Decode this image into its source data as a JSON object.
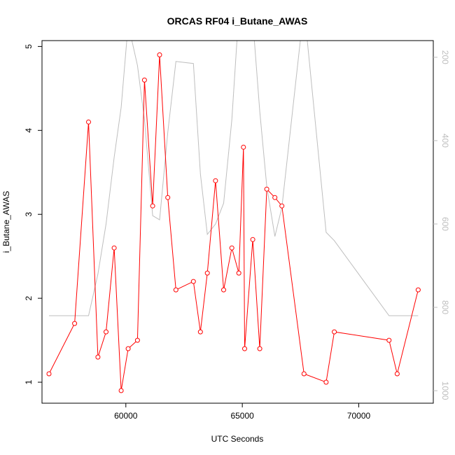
{
  "chart_data": {
    "type": "line",
    "title": "ORCAS RF04 i_Butane_AWAS",
    "xlabel": "UTC Seconds",
    "ylabel": "i_Butane_AWAS",
    "xlim": [
      56400,
      73200
    ],
    "ylim": [
      0.75,
      5.07
    ],
    "xticks": [
      60000,
      65000,
      70000
    ],
    "yticks": [
      1,
      2,
      3,
      4,
      5
    ],
    "colors": {
      "primary": "#ff0000",
      "secondary": "#bebebe",
      "axis": "#000000"
    },
    "series": [
      {
        "axis": "left",
        "color": "#ff0000",
        "marker": "open-circle",
        "x": [
          56700,
          57800,
          58400,
          58800,
          59150,
          59500,
          59800,
          60100,
          60500,
          60800,
          61150,
          61450,
          61800,
          62150,
          62900,
          63200,
          63500,
          63850,
          64200,
          64550,
          64850,
          65050,
          65100,
          65450,
          65750,
          66050,
          66400,
          66700,
          67650,
          68600,
          68950,
          71300,
          71650,
          72550
        ],
        "y": [
          1.1,
          1.7,
          4.1,
          1.3,
          1.6,
          2.6,
          0.9,
          1.4,
          1.5,
          4.6,
          3.1,
          4.9,
          3.2,
          2.1,
          2.2,
          1.6,
          2.3,
          3.4,
          2.1,
          2.6,
          2.3,
          3.8,
          1.4,
          2.7,
          1.4,
          3.3,
          3.2,
          3.1,
          1.1,
          1.0,
          1.6,
          1.5,
          1.1,
          2.1
        ]
      },
      {
        "axis": "right",
        "color": "#bebebe",
        "marker": "none",
        "x": [
          56700,
          57800,
          58400,
          58800,
          59150,
          59500,
          59800,
          60100,
          60500,
          60800,
          61150,
          61450,
          61800,
          62150,
          62900,
          63200,
          63500,
          63850,
          64200,
          64550,
          64850,
          65050,
          65100,
          65450,
          65750,
          66050,
          66400,
          66700,
          67650,
          68600,
          68950,
          71300,
          71650,
          72550
        ],
        "y": [
          820,
          820,
          820,
          720,
          600,
          440,
          320,
          120,
          220,
          350,
          580,
          590,
          380,
          210,
          215,
          480,
          625,
          600,
          550,
          350,
          90,
          100,
          100,
          110,
          330,
          510,
          630,
          560,
          80,
          620,
          640,
          820,
          820,
          820
        ]
      }
    ],
    "right_axis": {
      "lim": [
        1030,
        160
      ],
      "ticks": [
        200,
        400,
        600,
        800,
        1000
      ]
    },
    "grid": false,
    "legend": "none"
  }
}
